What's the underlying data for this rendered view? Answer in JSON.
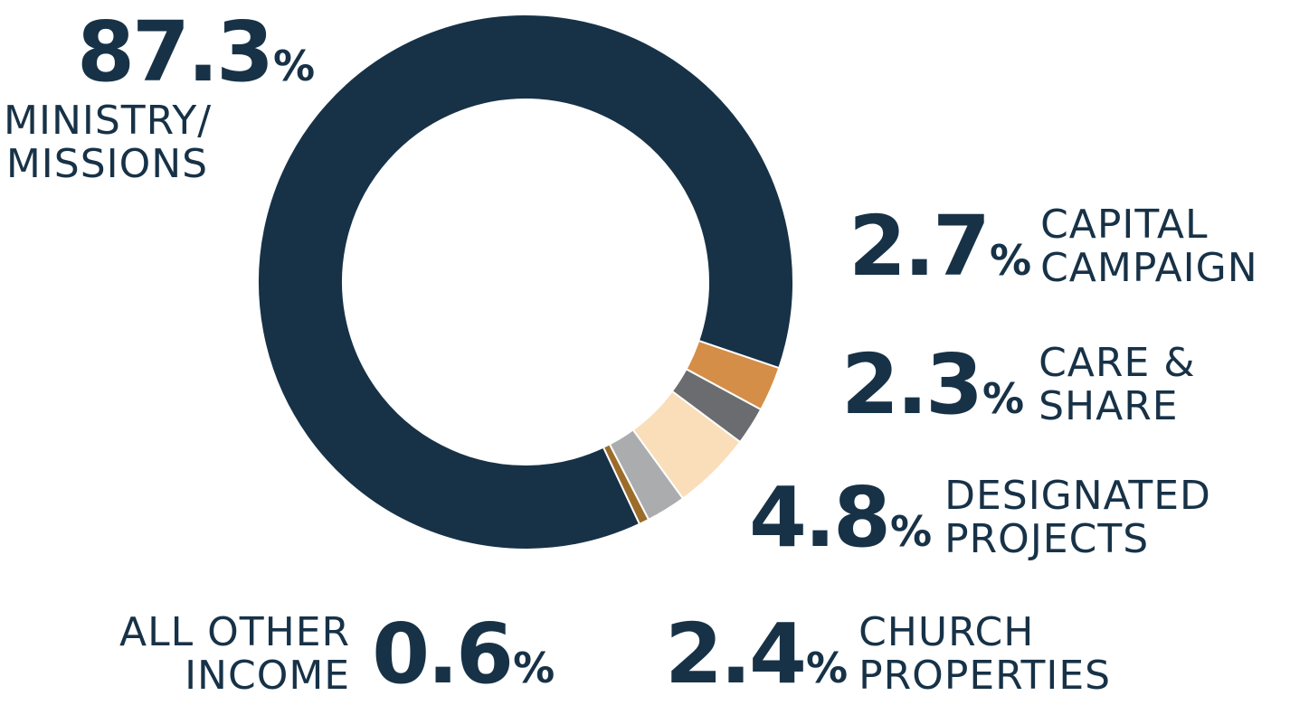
{
  "chart_data": {
    "type": "pie",
    "style": "donut",
    "series": [
      {
        "name": "MINISTRY/ MISSIONS",
        "value": 87.3,
        "color": "#173247"
      },
      {
        "name": "CAPITAL CAMPAIGN",
        "value": 2.7,
        "color": "#D48E47"
      },
      {
        "name": "CARE & SHARE",
        "value": 2.3,
        "color": "#6B6C70"
      },
      {
        "name": "DESIGNATED PROJECTS",
        "value": 4.8,
        "color": "#F9DEB9"
      },
      {
        "name": "CHURCH PROPERTIES",
        "value": 2.4,
        "color": "#ABACAE"
      },
      {
        "name": "ALL OTHER INCOME",
        "value": 0.6,
        "color": "#9C6C2A"
      }
    ],
    "labels": {
      "ministry": {
        "value": "87.3",
        "symbol": "%",
        "line1": "MINISTRY/",
        "line2": "MISSIONS"
      },
      "capital": {
        "value": "2.7",
        "symbol": "%",
        "line1": "CAPITAL",
        "line2": "CAMPAIGN"
      },
      "care": {
        "value": "2.3",
        "symbol": "%",
        "line1": "CARE &",
        "line2": "SHARE"
      },
      "designated": {
        "value": "4.8",
        "symbol": "%",
        "line1": "DESIGNATED",
        "line2": "PROJECTS"
      },
      "church": {
        "value": "2.4",
        "symbol": "%",
        "line1": "CHURCH",
        "line2": "PROPERTIES"
      },
      "other": {
        "value": "0.6",
        "symbol": "%",
        "line1": "ALL OTHER",
        "line2": "INCOME"
      }
    }
  }
}
